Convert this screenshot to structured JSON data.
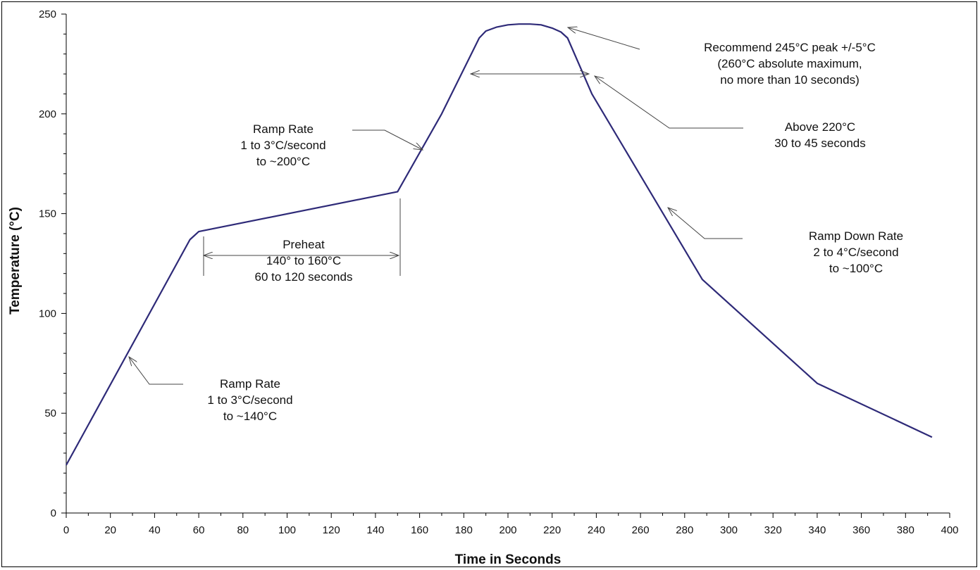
{
  "chart_data": {
    "type": "line",
    "title": "",
    "xlabel": "Time in Seconds",
    "ylabel": "Temperature (°C)",
    "xlim": [
      0,
      400
    ],
    "ylim": [
      0,
      250
    ],
    "x_ticks": [
      0,
      20,
      40,
      60,
      80,
      100,
      120,
      140,
      160,
      180,
      200,
      220,
      240,
      260,
      280,
      300,
      320,
      340,
      360,
      380,
      400
    ],
    "y_ticks": [
      0,
      50,
      100,
      150,
      200,
      250
    ],
    "grid": false,
    "line_color": "#2e2a78",
    "series": [
      {
        "name": "",
        "points": [
          [
            0,
            24
          ],
          [
            56,
            137
          ],
          [
            60,
            141
          ],
          [
            150,
            161
          ],
          [
            170,
            200
          ],
          [
            187,
            238
          ],
          [
            190,
            241.5
          ],
          [
            195,
            243.5
          ],
          [
            200,
            244.6
          ],
          [
            205,
            245
          ],
          [
            210,
            245
          ],
          [
            215,
            244.6
          ],
          [
            220,
            243
          ],
          [
            224,
            241
          ],
          [
            227,
            238
          ],
          [
            238,
            210
          ],
          [
            288,
            117
          ],
          [
            340,
            65
          ],
          [
            392,
            38
          ]
        ]
      }
    ],
    "annotations": [
      {
        "id": "ramp1",
        "lines": [
          "Ramp Rate",
          "1 to 3°C/second",
          "to ~140°C"
        ]
      },
      {
        "id": "ramp2",
        "lines": [
          "Ramp Rate",
          "1 to 3°C/second",
          "to ~200°C"
        ]
      },
      {
        "id": "preheat",
        "lines": [
          "Preheat",
          "140° to 160°C",
          "60 to 120 seconds"
        ]
      },
      {
        "id": "peak",
        "lines": [
          "Recommend 245°C peak +/-5°C",
          "(260°C absolute maximum,",
          "no more than 10 seconds)"
        ]
      },
      {
        "id": "above220",
        "lines": [
          "Above 220°C",
          "30 to 45 seconds"
        ]
      },
      {
        "id": "rampdown",
        "lines": [
          "Ramp Down Rate",
          "2 to 4°C/second",
          "to ~100°C"
        ]
      }
    ]
  }
}
